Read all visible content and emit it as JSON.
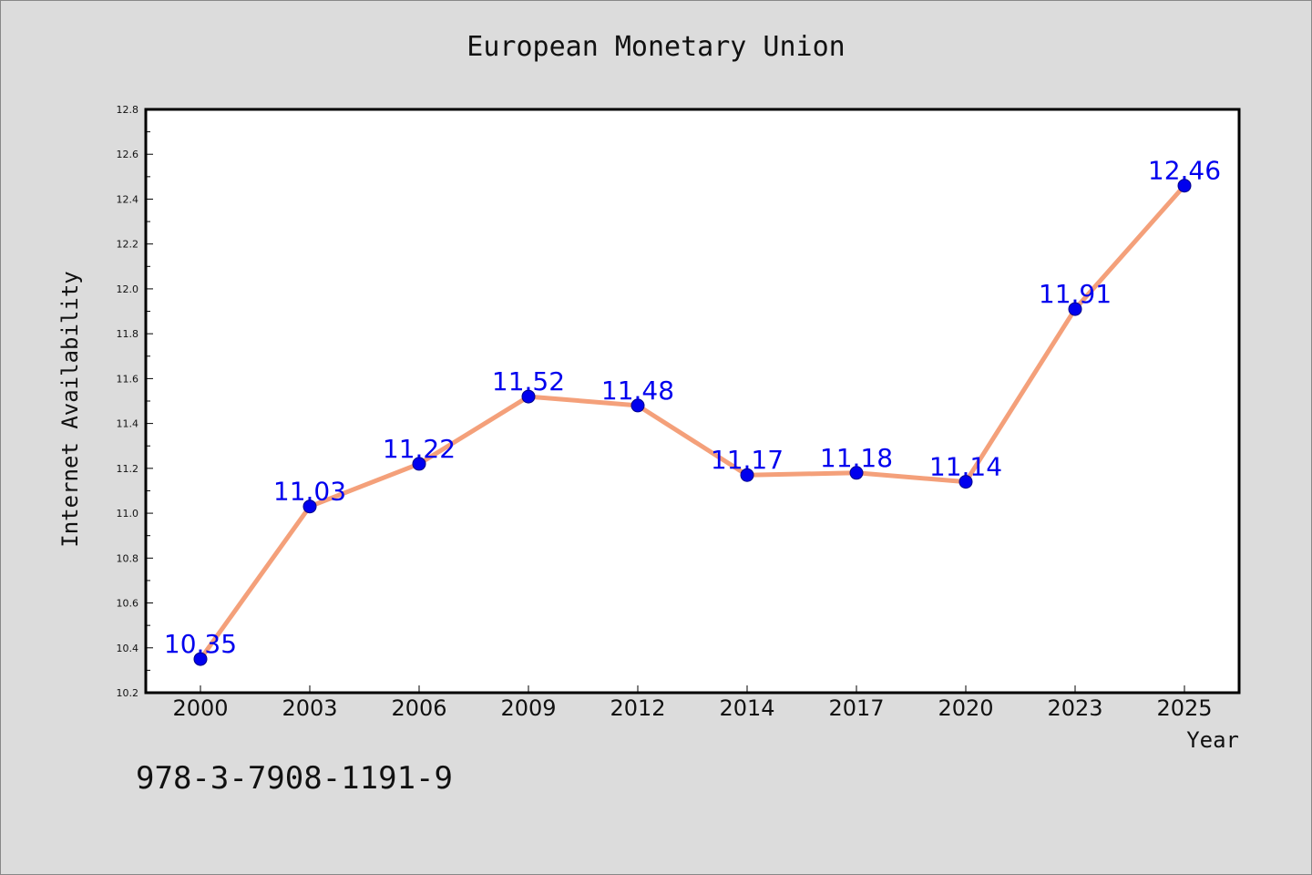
{
  "chart_data": {
    "type": "line",
    "title": "European Monetary Union",
    "xlabel": "Year",
    "ylabel": "Internet Availability",
    "categories": [
      "2000",
      "2003",
      "2006",
      "2009",
      "2012",
      "2014",
      "2017",
      "2020",
      "2023",
      "2025"
    ],
    "series": [
      {
        "values": [
          10.35,
          11.03,
          11.22,
          11.52,
          11.48,
          11.17,
          11.18,
          11.14,
          11.91,
          12.46
        ],
        "labels": [
          "10.35",
          "11.03",
          "11.22",
          "11.52",
          "11.48",
          "11.17",
          "11.18",
          "11.14",
          "11.91",
          "12.46"
        ],
        "line_color": "#f4a07a",
        "marker_color": "#0000ee",
        "label_color": "#0000ee"
      }
    ],
    "ylim": [
      10.2,
      12.8
    ],
    "yticks": [
      "10.2",
      "10.4",
      "10.6",
      "10.8",
      "11.0",
      "11.2",
      "11.4",
      "11.6",
      "11.8",
      "12.0",
      "12.2",
      "12.4",
      "12.6",
      "12.8"
    ],
    "grid": false,
    "legend": "none"
  },
  "footer": {
    "isbn": "978-3-7908-1191-9"
  },
  "colors": {
    "background": "#dcdcdc",
    "plot_area": "#ffffff",
    "axis": "#000000"
  }
}
